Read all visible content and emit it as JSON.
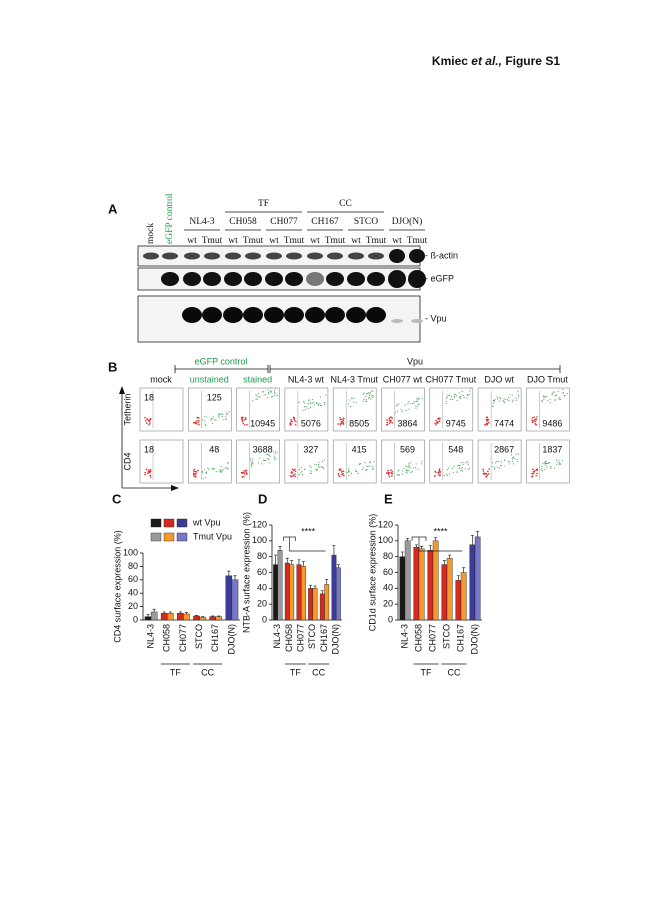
{
  "header": {
    "author": "Kmiec",
    "etal": "et al.,",
    "figure": "Figure S1"
  },
  "panel_a": {
    "label": "A",
    "single_lanes": [
      "mock",
      "eGFP control"
    ],
    "groups": [
      "NL4-3",
      "CH058",
      "CH077",
      "CH167",
      "STCO",
      "DJO(N)"
    ],
    "lane_labels": [
      "wt",
      "Tmut"
    ],
    "supergroups": [
      "TF",
      "CC"
    ],
    "blots": [
      "- ß-actin",
      "- eGFP",
      "- Vpu"
    ]
  },
  "panel_b": {
    "label": "B",
    "group_headers": [
      "eGFP control",
      "Vpu"
    ],
    "columns": [
      "mock",
      "unstained",
      "stained",
      "NL4-3 wt",
      "NL4-3 Tmut",
      "CH077 wt",
      "CH077 Tmut",
      "DJO wt",
      "DJO Tmut"
    ],
    "rows": [
      {
        "label": "Tetherin",
        "values": [
          18,
          125,
          10945,
          5076,
          8505,
          3864,
          9745,
          7474,
          9486
        ]
      },
      {
        "label": "CD4",
        "values": [
          18,
          48,
          3688,
          327,
          415,
          569,
          548,
          2867,
          1837
        ]
      }
    ]
  },
  "chart_data": [
    {
      "type": "bar",
      "panel": "C",
      "y_label": "CD4 surface expression (%)",
      "categories": [
        "NL4-3",
        "CH058",
        "CH077",
        "STCO",
        "CH167",
        "DJO(N)"
      ],
      "group_labels": [
        "TF",
        "CC"
      ],
      "ylim": [
        0,
        100
      ],
      "yticks": [
        0,
        20,
        40,
        60,
        80,
        100
      ],
      "legend": true,
      "series": [
        {
          "name": "wt Vpu",
          "colors": [
            "#1a1a1a",
            "#d42a20",
            "#d42a20",
            "#d42a20",
            "#d42a20",
            "#3c3c96"
          ],
          "values": [
            5,
            10,
            10,
            6,
            5,
            66
          ],
          "errors": [
            3,
            2,
            2,
            1,
            1,
            7
          ]
        },
        {
          "name": "Tmut Vpu",
          "colors": [
            "#9a9a9a",
            "#f39a2a",
            "#f39a2a",
            "#f39a2a",
            "#f39a2a",
            "#7878c8"
          ],
          "values": [
            12,
            10,
            9,
            4,
            5,
            60
          ],
          "errors": [
            4,
            2,
            2,
            1,
            1,
            6
          ]
        }
      ]
    },
    {
      "type": "bar",
      "panel": "D",
      "y_label": "NTB-A surface expression (%)",
      "categories": [
        "NL4-3",
        "CH058",
        "CH077",
        "STCO",
        "CH167",
        "DJO(N)"
      ],
      "group_labels": [
        "TF",
        "CC"
      ],
      "ylim": [
        0,
        120
      ],
      "yticks": [
        0,
        20,
        40,
        60,
        80,
        100,
        120
      ],
      "legend": false,
      "annotation": "****",
      "series": [
        {
          "name": "wt Vpu",
          "colors": [
            "#1a1a1a",
            "#d42a20",
            "#d42a20",
            "#d42a20",
            "#d42a20",
            "#3c3c96"
          ],
          "values": [
            70,
            72,
            70,
            40,
            33,
            82
          ],
          "errors": [
            12,
            6,
            6,
            4,
            4,
            12
          ]
        },
        {
          "name": "Tmut Vpu",
          "colors": [
            "#9a9a9a",
            "#f39a2a",
            "#f39a2a",
            "#f39a2a",
            "#f39a2a",
            "#7878c8"
          ],
          "values": [
            88,
            70,
            68,
            40,
            45,
            66
          ],
          "errors": [
            5,
            5,
            6,
            3,
            6,
            4
          ]
        }
      ]
    },
    {
      "type": "bar",
      "panel": "E",
      "y_label": "CD1d surface expression (%)",
      "categories": [
        "NL4-3",
        "CH058",
        "CH077",
        "STCO",
        "CH167",
        "DJO(N)"
      ],
      "group_labels": [
        "TF",
        "CC"
      ],
      "ylim": [
        0,
        120
      ],
      "yticks": [
        0,
        20,
        40,
        60,
        80,
        100,
        120
      ],
      "legend": false,
      "annotation": "****",
      "series": [
        {
          "name": "wt Vpu",
          "colors": [
            "#1a1a1a",
            "#d42a20",
            "#d42a20",
            "#d42a20",
            "#d42a20",
            "#3c3c96"
          ],
          "values": [
            80,
            92,
            88,
            70,
            50,
            95
          ],
          "errors": [
            6,
            3,
            6,
            5,
            6,
            12
          ]
        },
        {
          "name": "Tmut Vpu",
          "colors": [
            "#9a9a9a",
            "#f39a2a",
            "#f39a2a",
            "#f39a2a",
            "#f39a2a",
            "#7878c8"
          ],
          "values": [
            100,
            90,
            100,
            78,
            60,
            105
          ],
          "errors": [
            3,
            3,
            4,
            4,
            6,
            7
          ]
        }
      ]
    }
  ]
}
